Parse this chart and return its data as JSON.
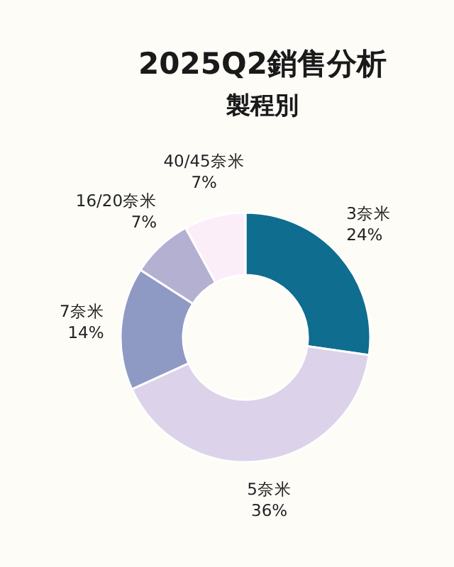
{
  "chart_data": {
    "type": "donut",
    "title": "2025Q2銷售分析",
    "subtitle": "製程別",
    "categories": [
      "3奈米",
      "5奈米",
      "7奈米",
      "16/20奈米",
      "40/45奈米"
    ],
    "values": [
      24,
      36,
      14,
      7,
      7
    ],
    "value_labels": [
      "24%",
      "36%",
      "14%",
      "7%",
      "7%"
    ],
    "colors": [
      "#0f6d8f",
      "#dcd3ea",
      "#8e9ac4",
      "#b3b0d2",
      "#fbeef9"
    ]
  }
}
